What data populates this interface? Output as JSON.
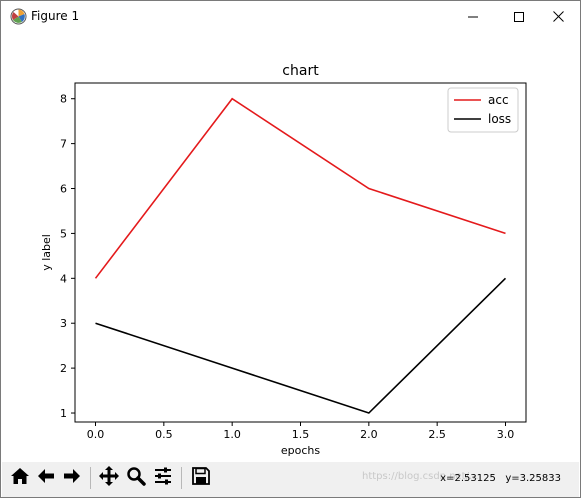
{
  "window": {
    "title": "Figure 1",
    "icon": "matplotlib-icon",
    "controls": [
      "minimize-icon",
      "maximize-icon",
      "close-icon"
    ]
  },
  "chart_data": {
    "type": "line",
    "title": "chart",
    "xlabel": "epochs",
    "ylabel": "y label",
    "x": [
      0,
      1,
      2,
      3
    ],
    "series": [
      {
        "name": "acc",
        "values": [
          4,
          8,
          6,
          5
        ],
        "color": "#e41a1c"
      },
      {
        "name": "loss",
        "values": [
          3,
          2,
          1,
          4
        ],
        "color": "#000000"
      }
    ],
    "xlim": [
      -0.15,
      3.15
    ],
    "ylim": [
      0.8,
      8.35
    ],
    "xticks": [
      0.0,
      0.5,
      1.0,
      1.5,
      2.0,
      2.5,
      3.0
    ],
    "xtick_labels": [
      "0.0",
      "0.5",
      "1.0",
      "1.5",
      "2.0",
      "2.5",
      "3.0"
    ],
    "yticks": [
      1,
      2,
      3,
      4,
      5,
      6,
      7,
      8
    ],
    "ytick_labels": [
      "1",
      "2",
      "3",
      "4",
      "5",
      "6",
      "7",
      "8"
    ],
    "grid": false,
    "legend_position": "upper right"
  },
  "toolbar": {
    "buttons": [
      "home-icon",
      "back-icon",
      "forward-icon",
      "pan-icon",
      "zoom-icon",
      "configure-subplots-icon",
      "save-icon"
    ],
    "coords": "x=2.53125   y=3.25833",
    "watermark": "https://blog.csdn.net/..."
  }
}
